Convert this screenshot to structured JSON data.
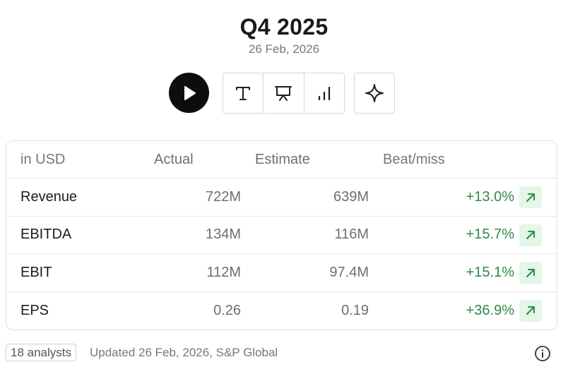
{
  "header": {
    "title": "Q4 2025",
    "date": "26 Feb, 2026"
  },
  "toolbar": {
    "buttons": [
      "play-icon",
      "text-icon",
      "presentation-icon",
      "bar-chart-icon",
      "sparkle-icon"
    ]
  },
  "table": {
    "headers": {
      "label": "in USD",
      "actual": "Actual",
      "estimate": "Estimate",
      "beat": "Beat/miss"
    },
    "rows": [
      {
        "label": "Revenue",
        "actual": "722M",
        "estimate": "639M",
        "beat": "+13.0%"
      },
      {
        "label": "EBITDA",
        "actual": "134M",
        "estimate": "116M",
        "beat": "+15.7%"
      },
      {
        "label": "EBIT",
        "actual": "112M",
        "estimate": "97.4M",
        "beat": "+15.1%"
      },
      {
        "label": "EPS",
        "actual": "0.26",
        "estimate": "0.19",
        "beat": "+36.9%"
      }
    ]
  },
  "footer": {
    "analysts": "18 analysts",
    "updated": "Updated 26 Feb, 2026, S&P Global"
  },
  "colors": {
    "positive": "#2e8b46",
    "positive_bg": "#e3f6e7",
    "play_bg": "#0d0d0d"
  }
}
